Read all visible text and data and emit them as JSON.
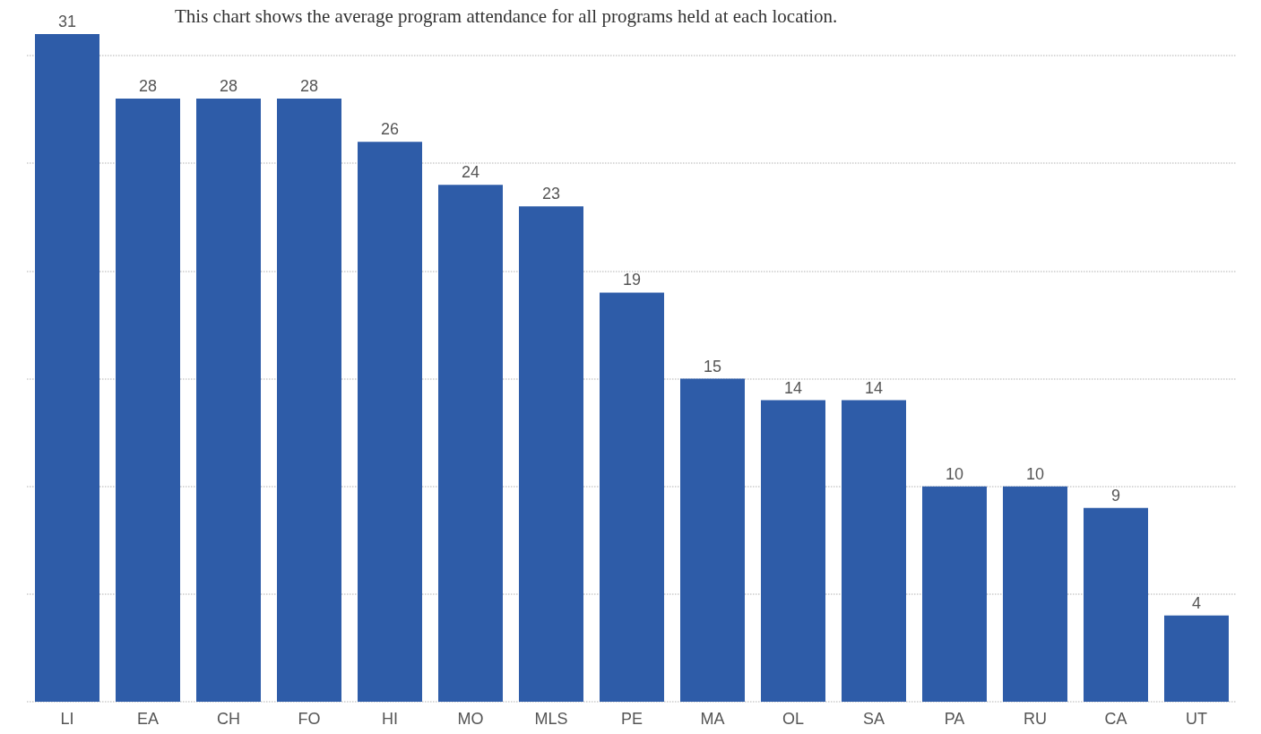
{
  "chart_data": {
    "type": "bar",
    "title": "This chart shows the average program attendance for all programs held at each location.",
    "categories": [
      "LI",
      "EA",
      "CH",
      "FO",
      "HI",
      "MO",
      "MLS",
      "PE",
      "MA",
      "OL",
      "SA",
      "PA",
      "RU",
      "CA",
      "UT"
    ],
    "values": [
      31,
      28,
      28,
      28,
      26,
      24,
      23,
      19,
      15,
      14,
      14,
      10,
      10,
      9,
      4
    ],
    "color": "#2e5ca8",
    "data_labels": true,
    "grid": "y",
    "tick_labels": "x",
    "ylim": [
      0,
      31
    ],
    "yticks": [
      {
        "value": 0,
        "label": null
      },
      {
        "value": 5,
        "label": null
      },
      {
        "value": 10,
        "label": null
      },
      {
        "value": 15,
        "label": null
      },
      {
        "value": 20,
        "label": null
      },
      {
        "value": 25,
        "label": null
      },
      {
        "value": 30,
        "label": null
      }
    ]
  }
}
